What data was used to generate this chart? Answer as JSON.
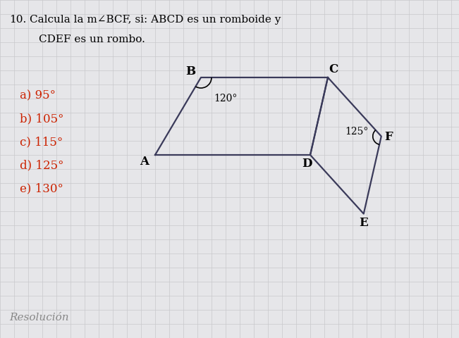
{
  "title_num": "10.",
  "background_color": "#e6e6e9",
  "grid_color": "#c8c8cc",
  "answers": [
    {
      "label": "a)",
      "value": "95°",
      "color": "#cc2200"
    },
    {
      "label": "b)",
      "value": "105°",
      "color": "#cc2200"
    },
    {
      "label": "c)",
      "value": "115°",
      "color": "#cc2200"
    },
    {
      "label": "d)",
      "value": "125°",
      "color": "#cc2200"
    },
    {
      "label": "e)",
      "value": "130°",
      "color": "#cc2200"
    }
  ],
  "resolution_label": "Resolución",
  "angle_B_label": "120°",
  "angle_F_label": "125°",
  "fig_width": 6.51,
  "fig_height": 4.81,
  "dpi": 100
}
